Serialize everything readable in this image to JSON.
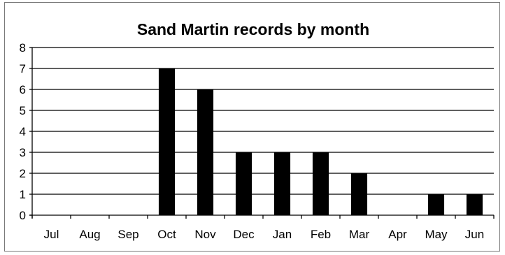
{
  "chart_data": {
    "type": "bar",
    "title": "Sand Martin records by month",
    "xlabel": "",
    "ylabel": "",
    "categories": [
      "Jul",
      "Aug",
      "Sep",
      "Oct",
      "Nov",
      "Dec",
      "Jan",
      "Feb",
      "Mar",
      "Apr",
      "May",
      "Jun"
    ],
    "values": [
      0,
      0,
      0,
      7,
      6,
      3,
      3,
      3,
      2,
      0,
      1,
      1
    ],
    "ylim": [
      0,
      8
    ],
    "yticks": [
      0,
      1,
      2,
      3,
      4,
      5,
      6,
      7,
      8
    ],
    "grid": true,
    "legend": "none",
    "bar_color": "#000000",
    "grid_color": "#000000"
  }
}
